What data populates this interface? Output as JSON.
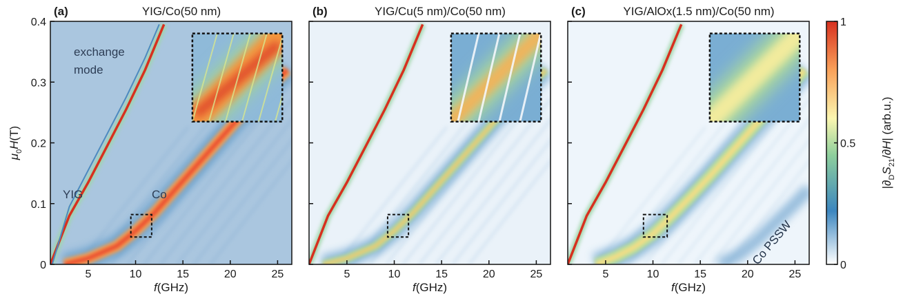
{
  "chart_data": [
    {
      "type": "heatmap",
      "panel_label": "(a)",
      "title": "YIG/Co(50 nm)",
      "xlabel_italic": "f",
      "xlabel_unit": "(GHz)",
      "ylabel_text": "μ0H(T)",
      "xlim": [
        1,
        26.5
      ],
      "ylim": [
        0,
        0.4
      ],
      "x_ticks": [
        5,
        10,
        15,
        20,
        25
      ],
      "y_ticks": [
        0,
        0.1,
        0.2,
        0.3,
        0.4
      ],
      "y_tick_labels": [
        "0",
        "0.1",
        "0.2",
        "0.3",
        "0.4"
      ],
      "annotations": [
        "exchange",
        "mode",
        "YIG",
        "Co"
      ],
      "modes": [
        {
          "name": "YIG",
          "f_ghz": [
            1.0,
            3.0,
            5.0,
            7.0,
            9.0,
            11.0,
            13.0
          ],
          "mu0H_t": [
            0.0,
            0.08,
            0.135,
            0.195,
            0.255,
            0.32,
            0.395
          ]
        },
        {
          "name": "exchange mode",
          "f_ghz": [
            1.2,
            3.0,
            5.0,
            7.0,
            9.0,
            11.0,
            12.5
          ],
          "mu0H_t": [
            0.0,
            0.095,
            0.155,
            0.215,
            0.275,
            0.34,
            0.395
          ]
        },
        {
          "name": "Co",
          "f_ghz": [
            2.5,
            5.0,
            8.0,
            10.0,
            12.0,
            14.0,
            16.0,
            18.0,
            20.0,
            22.0,
            24.0,
            26.0
          ],
          "mu0H_t": [
            0.0,
            0.01,
            0.03,
            0.055,
            0.085,
            0.12,
            0.155,
            0.19,
            0.225,
            0.26,
            0.29,
            0.32
          ]
        }
      ],
      "zoom_box": {
        "f_ghz": [
          9.5,
          11.7
        ],
        "mu0H_t": [
          0.045,
          0.082
        ]
      },
      "inset_box": {
        "f_ghz": [
          16.0,
          25.5
        ],
        "mu0H_t": [
          0.235,
          0.38
        ]
      }
    },
    {
      "type": "heatmap",
      "panel_label": "(b)",
      "title": "YIG/Cu(5 nm)/Co(50 nm)",
      "xlabel_italic": "f",
      "xlabel_unit": "(GHz)",
      "xlim": [
        1,
        26.5
      ],
      "ylim": [
        0,
        0.4
      ],
      "x_ticks": [
        5,
        10,
        15,
        20,
        25
      ],
      "y_ticks": [
        0,
        0.1,
        0.2,
        0.3,
        0.4
      ],
      "annotations": [],
      "modes": [
        {
          "name": "YIG",
          "f_ghz": [
            1.0,
            3.0,
            5.0,
            7.0,
            9.0,
            11.0,
            13.0
          ],
          "mu0H_t": [
            0.0,
            0.08,
            0.135,
            0.195,
            0.255,
            0.32,
            0.395
          ]
        },
        {
          "name": "Co",
          "f_ghz": [
            2.5,
            5.0,
            8.0,
            10.0,
            12.0,
            14.0,
            16.0,
            18.0,
            20.0,
            22.0,
            24.0,
            26.0
          ],
          "mu0H_t": [
            0.0,
            0.01,
            0.03,
            0.055,
            0.085,
            0.12,
            0.155,
            0.19,
            0.225,
            0.26,
            0.29,
            0.32
          ]
        }
      ],
      "zoom_box": {
        "f_ghz": [
          9.3,
          11.5
        ],
        "mu0H_t": [
          0.045,
          0.082
        ]
      },
      "inset_box": {
        "f_ghz": [
          16.0,
          25.5
        ],
        "mu0H_t": [
          0.235,
          0.38
        ]
      }
    },
    {
      "type": "heatmap",
      "panel_label": "(c)",
      "title": "YIG/AlOx(1.5 nm)/Co(50 nm)",
      "xlabel_italic": "f",
      "xlabel_unit": "(GHz)",
      "xlim": [
        1,
        26.5
      ],
      "ylim": [
        0,
        0.4
      ],
      "x_ticks": [
        5,
        10,
        15,
        20,
        25
      ],
      "y_ticks": [
        0,
        0.1,
        0.2,
        0.3,
        0.4
      ],
      "annotations": [
        "Co PSSW"
      ],
      "modes": [
        {
          "name": "YIG",
          "f_ghz": [
            1.0,
            3.0,
            5.0,
            7.0,
            9.0,
            11.0,
            13.0
          ],
          "mu0H_t": [
            0.0,
            0.08,
            0.135,
            0.195,
            0.255,
            0.32,
            0.395
          ]
        },
        {
          "name": "Co",
          "f_ghz": [
            4.0,
            6.0,
            8.0,
            10.0,
            12.0,
            14.0,
            16.0,
            18.0,
            20.0,
            22.0,
            24.0,
            26.0
          ],
          "mu0H_t": [
            0.0,
            0.012,
            0.028,
            0.05,
            0.08,
            0.112,
            0.145,
            0.18,
            0.215,
            0.25,
            0.285,
            0.32
          ]
        },
        {
          "name": "Co PSSW",
          "f_ghz": [
            17.0,
            19.0,
            21.0,
            23.0,
            25.0,
            26.5
          ],
          "mu0H_t": [
            0.0,
            0.015,
            0.04,
            0.07,
            0.1,
            0.125
          ]
        }
      ],
      "zoom_box": {
        "f_ghz": [
          9.0,
          11.5
        ],
        "mu0H_t": [
          0.045,
          0.082
        ]
      },
      "inset_box": {
        "f_ghz": [
          16.0,
          25.5
        ],
        "mu0H_t": [
          0.235,
          0.38
        ]
      }
    }
  ],
  "colorbar": {
    "label": "|∂DS21/∂H| (arb.u.)",
    "range": [
      0,
      1
    ],
    "ticks": [
      0,
      0.5,
      1
    ],
    "tick_labels": [
      "0",
      "0.5",
      "1"
    ],
    "colors": [
      "#ffffff",
      "#3c86bf",
      "#8ecf9c",
      "#fbf6b0",
      "#f9a15a",
      "#d7301f"
    ]
  }
}
